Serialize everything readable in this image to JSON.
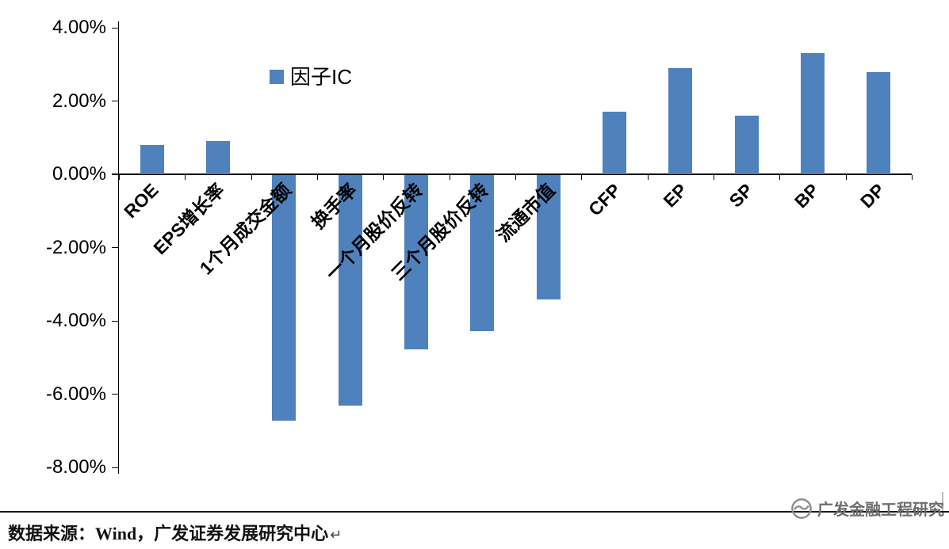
{
  "chart_data": {
    "type": "bar",
    "title": "",
    "legend": {
      "label": "因子IC"
    },
    "categories": [
      "ROE",
      "EPS增长率",
      "1个月成交金额",
      "换手率",
      "一个月股价反转",
      "三个月股价反转",
      "流通市值",
      "CFP",
      "EP",
      "SP",
      "BP",
      "DP"
    ],
    "values": [
      0.8,
      0.9,
      -6.7,
      -6.3,
      -4.75,
      -4.25,
      -3.4,
      1.7,
      2.9,
      1.6,
      3.3,
      2.8
    ],
    "value_unit": "%",
    "ylim": [
      -8,
      4
    ],
    "yticks": [
      4,
      2,
      0,
      -2,
      -4,
      -6,
      -8
    ],
    "ytick_labels": [
      "4.00%",
      "2.00%",
      "0.00%",
      "-2.00%",
      "-4.00%",
      "-6.00%",
      "-8.00%"
    ],
    "bar_color": "#4F81BD",
    "grid": false,
    "legend_position": "top-inside-left"
  },
  "footer": {
    "source_text": "数据来源：Wind，广发证券发展研究中心",
    "eol_mark": "↵"
  },
  "watermark": {
    "text": "广发金融工程研究",
    "icon": "gf-logo-icon"
  }
}
